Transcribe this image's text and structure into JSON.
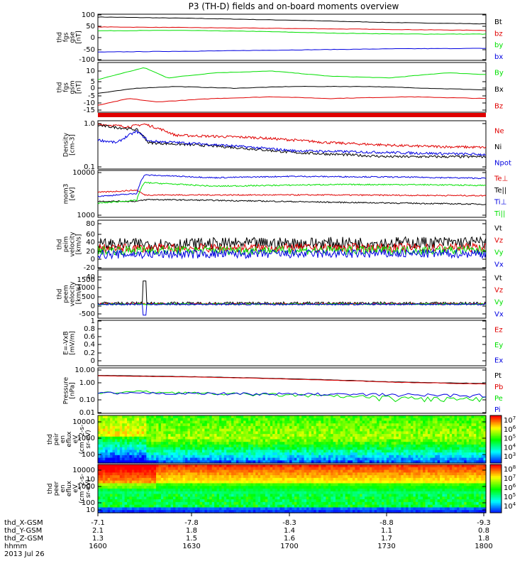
{
  "title": "P3 (TH-D) fields and on-board moments overview",
  "colors": {
    "black": "#000000",
    "red": "#e00000",
    "green": "#00e000",
    "blue": "#0000e0"
  },
  "chart_data": [
    {
      "type": "line",
      "ylabel": [
        "thd",
        "fgs",
        "gse",
        "[nT]"
      ],
      "yticks": [
        100,
        50,
        0,
        -50,
        -100
      ],
      "ylim": [
        -100,
        100
      ],
      "series": [
        {
          "name": "Bt",
          "color": "black",
          "points": [
            [
              0,
              88
            ],
            [
              0.25,
              82
            ],
            [
              0.5,
              74
            ],
            [
              0.75,
              64
            ],
            [
              1,
              58
            ]
          ]
        },
        {
          "name": "bz",
          "color": "red",
          "points": [
            [
              0,
              45
            ],
            [
              0.25,
              42
            ],
            [
              0.5,
              38
            ],
            [
              0.75,
              34
            ],
            [
              1,
              30
            ]
          ]
        },
        {
          "name": "by",
          "color": "green",
          "points": [
            [
              0,
              28
            ],
            [
              0.2,
              30
            ],
            [
              0.4,
              26
            ],
            [
              0.6,
              18
            ],
            [
              0.8,
              14
            ],
            [
              1,
              14
            ]
          ]
        },
        {
          "name": "bx",
          "color": "blue",
          "points": [
            [
              0,
              -64
            ],
            [
              0.25,
              -60
            ],
            [
              0.5,
              -55
            ],
            [
              0.75,
              -50
            ],
            [
              1,
              -48
            ]
          ]
        }
      ]
    },
    {
      "type": "line",
      "ylabel": [
        "thd",
        "fgs",
        "gsm",
        "[nT]"
      ],
      "yticks": [
        10,
        5,
        0,
        -5,
        -10,
        -15
      ],
      "ylim": [
        -17,
        12
      ],
      "series": [
        {
          "name": "By",
          "color": "green",
          "points": [
            [
              0,
              2
            ],
            [
              0.05,
              5
            ],
            [
              0.12,
              9
            ],
            [
              0.18,
              3
            ],
            [
              0.3,
              6
            ],
            [
              0.45,
              7
            ],
            [
              0.6,
              4
            ],
            [
              0.75,
              3
            ],
            [
              0.9,
              6
            ],
            [
              1,
              5
            ]
          ]
        },
        {
          "name": "Bx",
          "color": "black",
          "points": [
            [
              0,
              -6
            ],
            [
              0.1,
              -3
            ],
            [
              0.2,
              -2
            ],
            [
              0.35,
              -3
            ],
            [
              0.5,
              -2
            ],
            [
              0.7,
              -2
            ],
            [
              0.85,
              -3
            ],
            [
              1,
              -4
            ]
          ]
        },
        {
          "name": "Bz",
          "color": "red",
          "points": [
            [
              0,
              -13
            ],
            [
              0.08,
              -9
            ],
            [
              0.15,
              -11
            ],
            [
              0.3,
              -9
            ],
            [
              0.45,
              -8
            ],
            [
              0.6,
              -9
            ],
            [
              0.8,
              -8
            ],
            [
              1,
              -9
            ]
          ]
        }
      ]
    },
    {
      "type": "line",
      "ylabel": [
        "Density",
        "[cm-3]"
      ],
      "yticks": [
        1.0,
        0.1
      ],
      "ylim": [
        0.1,
        1.0
      ],
      "series": [
        {
          "name": "Ne",
          "color": "red",
          "points": [
            [
              0,
              0.85
            ],
            [
              0.08,
              0.75
            ],
            [
              0.12,
              0.85
            ],
            [
              0.2,
              0.5
            ],
            [
              0.4,
              0.45
            ],
            [
              0.6,
              0.35
            ],
            [
              0.8,
              0.3
            ],
            [
              1,
              0.28
            ]
          ]
        },
        {
          "name": "Ni",
          "color": "black",
          "points": [
            [
              0,
              0.8
            ],
            [
              0.1,
              0.65
            ],
            [
              0.13,
              0.35
            ],
            [
              0.3,
              0.3
            ],
            [
              0.5,
              0.22
            ],
            [
              0.75,
              0.18
            ],
            [
              1,
              0.18
            ]
          ]
        },
        {
          "name": "Npot",
          "color": "blue",
          "points": [
            [
              0,
              0.4
            ],
            [
              0.05,
              0.35
            ],
            [
              0.1,
              0.6
            ],
            [
              0.13,
              0.38
            ],
            [
              0.3,
              0.32
            ],
            [
              0.5,
              0.24
            ],
            [
              1,
              0.2
            ]
          ]
        }
      ]
    },
    {
      "type": "line",
      "ylabel": [
        "mom3",
        "[eV]"
      ],
      "yticks": [
        10000,
        1000
      ],
      "ylim": [
        1000,
        10000
      ],
      "series": [
        {
          "name": "Te⊥",
          "color": "red",
          "points": [
            [
              0,
              3400
            ],
            [
              0.1,
              3800
            ],
            [
              0.12,
              3000
            ],
            [
              0.3,
              3000
            ],
            [
              0.6,
              3000
            ],
            [
              1,
              2900
            ]
          ]
        },
        {
          "name": "Te||",
          "color": "black",
          "points": [
            [
              0,
              2200
            ],
            [
              0.1,
              2200
            ],
            [
              0.13,
              2400
            ],
            [
              0.3,
              2300
            ],
            [
              0.6,
              2100
            ],
            [
              1,
              1900
            ]
          ]
        },
        {
          "name": "Ti⊥",
          "color": "blue",
          "points": [
            [
              0,
              2800
            ],
            [
              0.1,
              3200
            ],
            [
              0.12,
              8000
            ],
            [
              0.3,
              7000
            ],
            [
              0.5,
              7500
            ],
            [
              0.8,
              7200
            ],
            [
              1,
              6800
            ]
          ]
        },
        {
          "name": "Ti||",
          "color": "green",
          "points": [
            [
              0,
              2000
            ],
            [
              0.1,
              2300
            ],
            [
              0.12,
              5500
            ],
            [
              0.3,
              4600
            ],
            [
              0.6,
              5000
            ],
            [
              0.8,
              5000
            ],
            [
              1,
              4800
            ]
          ]
        }
      ]
    },
    {
      "type": "line",
      "ylabel": [
        "thd",
        "peim",
        "velocity",
        "[km/s]"
      ],
      "yticks": [
        80,
        60,
        40,
        20,
        0,
        -20,
        -40
      ],
      "ylim": [
        -40,
        80
      ],
      "series": [
        {
          "name": "Vt",
          "color": "black",
          "points": [
            [
              0,
              20
            ],
            [
              1,
              25
            ]
          ]
        },
        {
          "name": "Vz",
          "color": "red",
          "points": [
            [
              0,
              10
            ],
            [
              1,
              12
            ]
          ]
        },
        {
          "name": "Vy",
          "color": "green",
          "points": [
            [
              0,
              5
            ],
            [
              1,
              5
            ]
          ]
        },
        {
          "name": "Vx",
          "color": "blue",
          "points": [
            [
              0,
              -5
            ],
            [
              1,
              -3
            ]
          ]
        }
      ]
    },
    {
      "type": "line",
      "ylabel": [
        "thd",
        "peem",
        "velocity",
        "[km/s]"
      ],
      "yticks": [
        1500,
        1000,
        500,
        0,
        -500
      ],
      "ylim": [
        -700,
        1700
      ],
      "series": [
        {
          "name": "Vt",
          "color": "black",
          "points": [
            [
              0,
              40
            ],
            [
              1,
              40
            ]
          ]
        },
        {
          "name": "Vz",
          "color": "red",
          "points": [
            [
              0,
              10
            ],
            [
              1,
              10
            ]
          ]
        },
        {
          "name": "Vy",
          "color": "green",
          "points": [
            [
              0,
              0
            ],
            [
              1,
              0
            ]
          ]
        },
        {
          "name": "Vx",
          "color": "blue",
          "points": [
            [
              0,
              -10
            ],
            [
              1,
              -10
            ]
          ]
        }
      ]
    },
    {
      "type": "line",
      "ylabel": [
        "E=-VxB",
        "[mV/m]"
      ],
      "yticks": [
        1.0,
        0.8,
        0.6,
        0.4,
        0.2,
        0.0
      ],
      "ylim": [
        0,
        1
      ],
      "series": [
        {
          "name": "Ez",
          "color": "red",
          "points": []
        },
        {
          "name": "Ey",
          "color": "green",
          "points": []
        },
        {
          "name": "Ex",
          "color": "blue",
          "points": []
        }
      ]
    },
    {
      "type": "line",
      "ylabel": [
        "Pressure",
        "[nPa]"
      ],
      "yticks": [
        10.0,
        1.0,
        0.1,
        0.01
      ],
      "ylim": [
        0.01,
        10
      ],
      "series": [
        {
          "name": "Pt",
          "color": "black",
          "points": [
            [
              0,
              3.2
            ],
            [
              0.25,
              2.6
            ],
            [
              0.5,
              1.9
            ],
            [
              0.75,
              1.2
            ],
            [
              1,
              0.9
            ]
          ]
        },
        {
          "name": "Pb",
          "color": "red",
          "points": [
            [
              0,
              3.0
            ],
            [
              0.25,
              2.5
            ],
            [
              0.5,
              1.8
            ],
            [
              0.75,
              1.15
            ],
            [
              1,
              0.85
            ]
          ]
        },
        {
          "name": "Pe",
          "color": "green",
          "points": [
            [
              0,
              0.2
            ],
            [
              0.1,
              0.28
            ],
            [
              0.15,
              0.25
            ],
            [
              0.3,
              0.2
            ],
            [
              0.5,
              0.16
            ],
            [
              0.75,
              0.1
            ],
            [
              1,
              0.08
            ]
          ]
        },
        {
          "name": "Pi",
          "color": "blue",
          "points": [
            [
              0,
              0.22
            ],
            [
              0.1,
              0.2
            ],
            [
              0.13,
              0.22
            ],
            [
              0.3,
              0.2
            ],
            [
              0.6,
              0.18
            ],
            [
              1,
              0.15
            ]
          ]
        }
      ]
    },
    {
      "type": "heatmap",
      "ylabel": [
        "thd",
        "peir",
        "en",
        "eflux",
        "eV",
        "(cm^2-s-",
        "sr-eV)"
      ],
      "yticks": [
        10000,
        1000,
        100,
        10
      ],
      "colorbar": {
        "labels": [
          "10^7",
          "10^6",
          "10^5",
          "10^4",
          "10^3"
        ]
      }
    },
    {
      "type": "heatmap",
      "ylabel": [
        "thd",
        "peer",
        "en",
        "eflux",
        "eV",
        "(cm^2-s-",
        "sr-eV)"
      ],
      "yticks": [
        10000,
        1000,
        100,
        10
      ],
      "colorbar": {
        "labels": [
          "10^8",
          "10^7",
          "10^6",
          "10^5",
          "10^4"
        ]
      }
    }
  ],
  "xaxis": {
    "rows": [
      {
        "label": "thd_X-GSM",
        "values": [
          "-7.1",
          "-7.8",
          "-8.3",
          "-8.8",
          "-9.3"
        ]
      },
      {
        "label": "thd_Y-GSM",
        "values": [
          "2.1",
          "1.8",
          "1.4",
          "1.1",
          "0.8"
        ]
      },
      {
        "label": "thd_Z-GSM",
        "values": [
          "1.3",
          "1.5",
          "1.6",
          "1.7",
          "1.8"
        ]
      },
      {
        "label": "hhmm",
        "values": [
          "1600",
          "1630",
          "1700",
          "1730",
          "1800"
        ]
      }
    ],
    "date": "2013 Jul 26"
  }
}
